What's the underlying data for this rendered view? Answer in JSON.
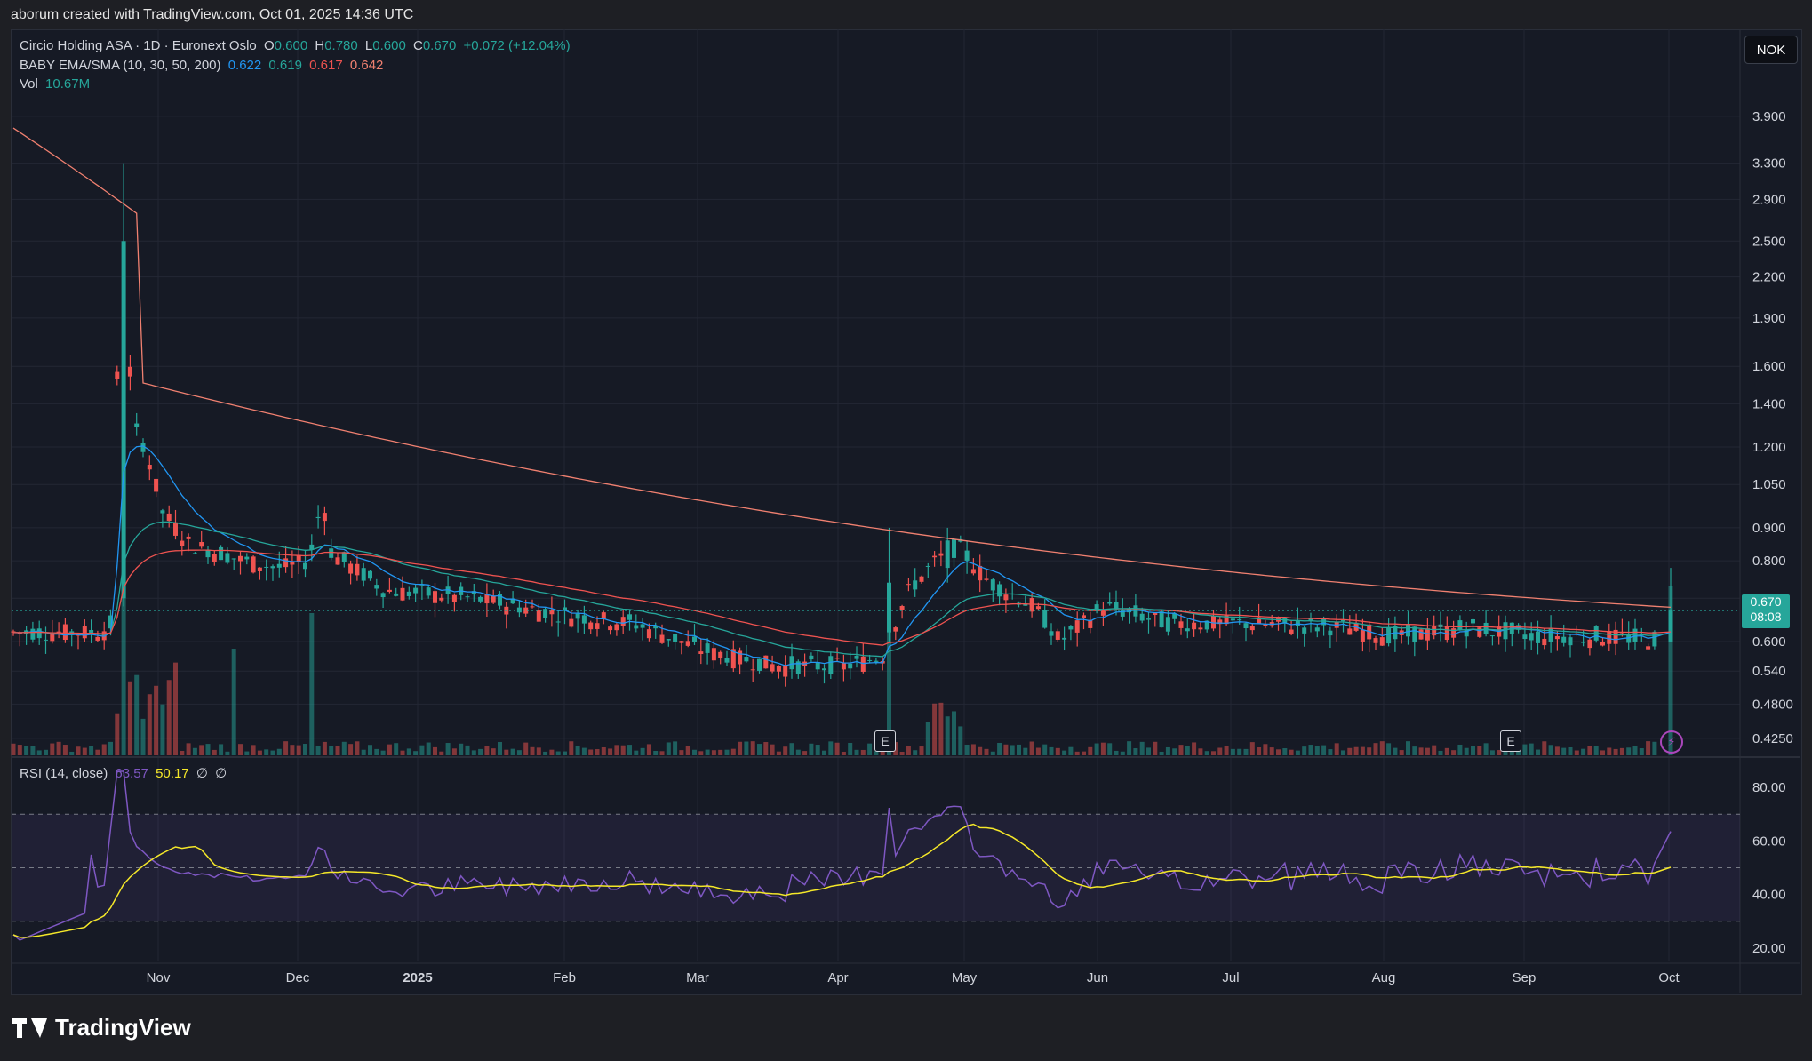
{
  "header": {
    "attribution": "aborum created with TradingView.com, Oct 01, 2025 14:36 UTC"
  },
  "legend": {
    "title": "Circio Holding ASA · 1D · Euronext Oslo",
    "o_label": "O",
    "o_value": "0.600",
    "h_label": "H",
    "h_value": "0.780",
    "l_label": "L",
    "l_value": "0.600",
    "c_label": "C",
    "c_value": "0.670",
    "change": "+0.072 (+12.04%)",
    "ma_label": "BABY EMA/SMA (10, 30, 50, 200)",
    "ma_values": [
      "0.622",
      "0.619",
      "0.617",
      "0.642"
    ],
    "vol_label": "Vol",
    "vol_value": "10.67M",
    "rsi_label": "RSI (14, close)",
    "rsi_value": "63.57",
    "rsi_ma_value": "50.17",
    "rsi_extra1": "∅",
    "rsi_extra2": "∅"
  },
  "currency_button": "NOK",
  "last_price": {
    "price": "0.670",
    "countdown": "08:08"
  },
  "earnings_marker": "E",
  "brand": "TradingView",
  "colors": {
    "up": "#26a69a",
    "down": "#ef5350",
    "ema10": "#2196f3",
    "ema30": "#26a69a",
    "sma50": "#ef5350",
    "sma200": "#f08070",
    "rsi": "#7e57c2",
    "rsi_ma": "#f5e829",
    "bg": "#161a25",
    "grid": "#232734"
  },
  "chart_data": [
    {
      "type": "candlestick",
      "title": "Circio Holding ASA · 1D · Euronext Oslo",
      "y_scale": "log",
      "y_ticks": [
        "3.900",
        "3.300",
        "2.900",
        "2.500",
        "2.200",
        "1.900",
        "1.600",
        "1.400",
        "1.200",
        "1.050",
        "0.900",
        "0.800",
        "0.700",
        "0.600",
        "0.540",
        "0.4800",
        "0.4250"
      ],
      "x_ticks": [
        "Nov",
        "Dec",
        "2025",
        "Feb",
        "Mar",
        "Apr",
        "May",
        "Jun",
        "Jul",
        "Aug",
        "Sep",
        "Oct"
      ],
      "closes_by_month": [
        {
          "period": "mid Oct 2024",
          "close": 0.62
        },
        {
          "period": "late Oct 2024 spike",
          "high": 3.3,
          "close": 1.3
        },
        {
          "period": "Nov 2024",
          "close": 0.78
        },
        {
          "period": "Dec 2024",
          "close": 0.72
        },
        {
          "period": "Jan 2025",
          "close": 0.7
        },
        {
          "period": "Feb 2025",
          "close": 0.66
        },
        {
          "period": "Mar 2025",
          "close": 0.57
        },
        {
          "period": "Apr 2025",
          "close": 0.62
        },
        {
          "period": "late Apr 2025",
          "high": 0.9,
          "close": 0.78
        },
        {
          "period": "May 2025",
          "close": 0.66
        },
        {
          "period": "Jun 2025",
          "close": 0.64
        },
        {
          "period": "Jul 2025",
          "close": 0.64
        },
        {
          "period": "Aug 2025",
          "close": 0.61
        },
        {
          "period": "Sep 2025",
          "close": 0.61
        },
        {
          "period": "Oct 01 2025",
          "open": 0.6,
          "high": 0.78,
          "low": 0.6,
          "close": 0.67
        }
      ],
      "series": [
        {
          "name": "EMA 10",
          "last": 0.622
        },
        {
          "name": "EMA 30",
          "last": 0.619
        },
        {
          "name": "SMA 50",
          "last": 0.617
        },
        {
          "name": "SMA 200",
          "last": 0.642
        }
      ],
      "volume_last": "10.67M"
    },
    {
      "type": "line",
      "title": "RSI (14, close)",
      "y_ticks": [
        "80.00",
        "60.00",
        "40.00",
        "20.00"
      ],
      "ylim": [
        15,
        88
      ],
      "bands": [
        30,
        50,
        70
      ],
      "series": [
        {
          "name": "RSI",
          "last": 63.57
        },
        {
          "name": "RSI MA",
          "last": 50.17
        }
      ]
    }
  ]
}
